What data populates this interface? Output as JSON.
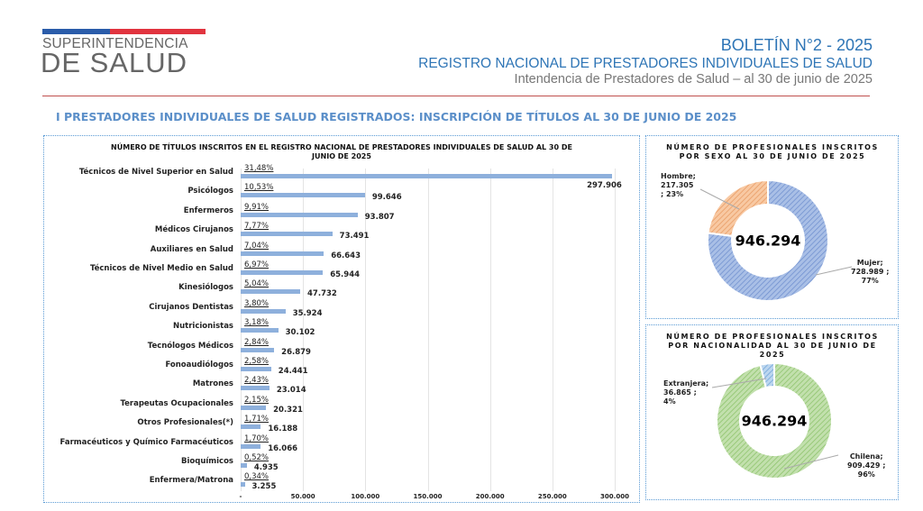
{
  "header": {
    "logo_line1": "SUPERINTENDENCIA",
    "logo_line2": "DE SALUD",
    "title": "BOLETÍN N°2 - 2025",
    "subtitle": "REGISTRO NACIONAL DE PRESTADORES INDIVIDUALES DE SALUD",
    "subtitle2": "Intendencia de Prestadores de Salud – al 30 de junio de 2025",
    "section": "I PRESTADORES INDIVIDUALES DE SALUD REGISTRADOS: INSCRIPCIÓN DE TÍTULOS AL 30 DE JUNIO DE 2025"
  },
  "colors": {
    "brand_blue": "#2e75b6",
    "bar": "#8eb0dc",
    "mujer": "#8eaadb",
    "hombre": "#f4b183",
    "chilena": "#a9d18e",
    "extranjera": "#9dc3e6"
  },
  "chart_data": [
    {
      "type": "bar",
      "orientation": "horizontal",
      "title": "NÚMERO DE TÍTULOS INSCRITOS EN EL REGISTRO NACIONAL DE PRESTADORES INDIVIDUALES DE SALUD AL 30  DE JUNIO DE 2025",
      "categories": [
        "Técnicos de Nivel Superior en Salud",
        "Psicólogos",
        "Enfermeros",
        "Médicos Cirujanos",
        "Auxiliares en Salud",
        "Técnicos de Nivel Medio en Salud",
        "Kinesiólogos",
        "Cirujanos Dentistas",
        "Nutricionistas",
        "Tecnólogos Médicos",
        "Fonoaudiólogos",
        "Matrones",
        "Terapeutas Ocupacionales",
        "Otros Profesionales(*)",
        "Farmacéuticos y Químico Farmacéuticos",
        "Bioquímicos",
        "Enfermera/Matrona"
      ],
      "values": [
        297906,
        99646,
        93807,
        73491,
        66643,
        65944,
        47732,
        35924,
        30102,
        26879,
        24441,
        23014,
        20321,
        16188,
        16066,
        4935,
        3255
      ],
      "value_labels": [
        "297.906",
        "99.646",
        "93.807",
        "73.491",
        "66.643",
        "65.944",
        "47.732",
        "35.924",
        "30.102",
        "26.879",
        "24.441",
        "23.014",
        "20.321",
        "16.188",
        "16.066",
        "4.935",
        "3.255"
      ],
      "percent_labels": [
        "31,48%",
        "10,53%",
        "9,91%",
        "7,77%",
        "7,04%",
        "6,97%",
        "5,04%",
        "3,80%",
        "3,18%",
        "2,84%",
        "2,58%",
        "2,43%",
        "2,15%",
        "1,71%",
        "1,70%",
        "0,52%",
        "0,34%"
      ],
      "xlim": [
        0,
        300000
      ],
      "xticks": [
        0,
        50000,
        100000,
        150000,
        200000,
        250000,
        300000
      ],
      "xtick_labels": [
        "-",
        "50.000",
        "100.000",
        "150.000",
        "200.000",
        "250.000",
        "300.000"
      ],
      "grid": true
    },
    {
      "type": "pie",
      "donut": true,
      "title": "NÚMERO DE PROFESIONALES INSCRITOS POR SEXO AL 30 DE JUNIO DE 2025",
      "center_label": "946.294",
      "slices": [
        {
          "name": "Mujer",
          "value": 728989,
          "label": "Mujer;\n728.989 ;\n77%"
        },
        {
          "name": "Hombre",
          "value": 217305,
          "label": "Hombre;\n217.305\n; 23%"
        }
      ]
    },
    {
      "type": "pie",
      "donut": true,
      "title": "NÚMERO DE PROFESIONALES INSCRITOS POR NACIONALIDAD AL 30 DE JUNIO DE 2025",
      "center_label": "946.294",
      "slices": [
        {
          "name": "Chilena",
          "value": 909429,
          "label": "Chilena;\n909.429 ;\n96%"
        },
        {
          "name": "Extranjera",
          "value": 36865,
          "label": "Extranjera;\n36.865 ;\n4%"
        }
      ]
    }
  ]
}
